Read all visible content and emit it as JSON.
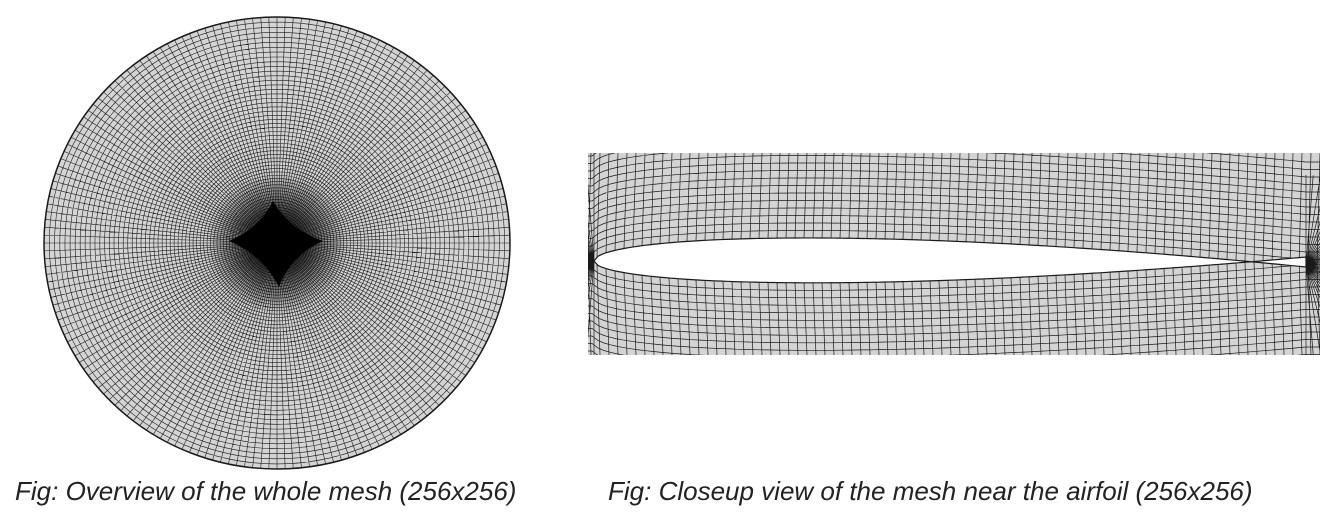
{
  "figures": [
    {
      "id": "overview",
      "caption": "Fig: Overview of the whole mesh (256x256)",
      "mesh_resolution": "256x256",
      "view": "whole mesh"
    },
    {
      "id": "closeup",
      "caption": "Fig: Closeup view of the mesh near the airfoil (256x256)",
      "mesh_resolution": "256x256",
      "view": "near airfoil"
    }
  ],
  "colors": {
    "mesh_fill": "#d4d4d4",
    "mesh_line": "#1a1a1a",
    "background": "#ffffff"
  }
}
